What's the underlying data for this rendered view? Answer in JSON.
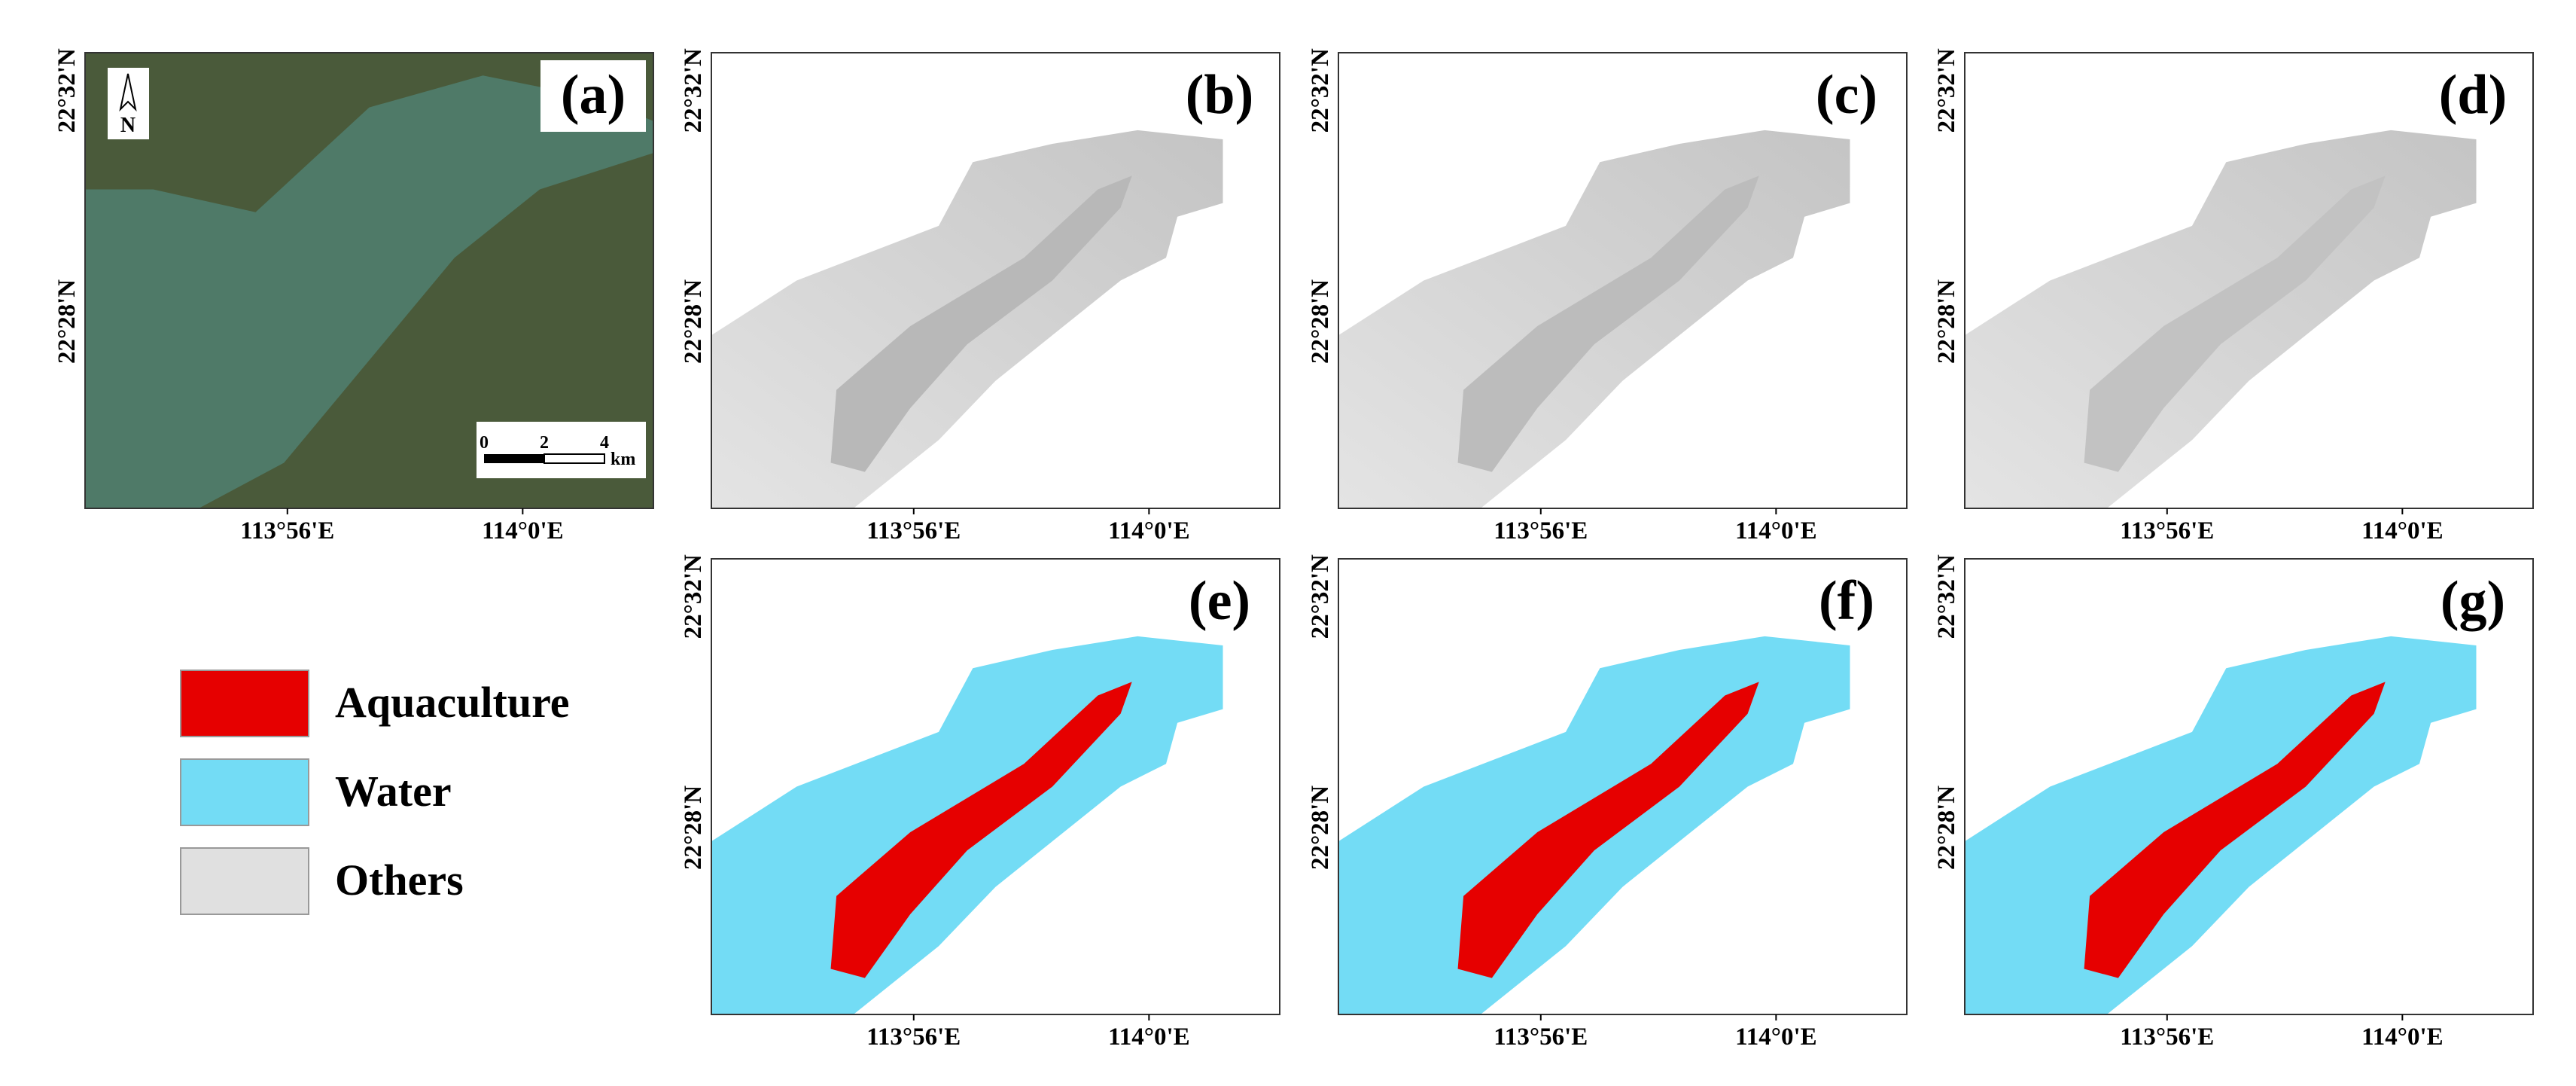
{
  "panels": [
    {
      "label": "(a)"
    },
    {
      "label": "(b)"
    },
    {
      "label": "(c)"
    },
    {
      "label": "(d)"
    },
    {
      "label": "(e)"
    },
    {
      "label": "(f)"
    },
    {
      "label": "(g)"
    }
  ],
  "x_ticks": [
    "113°56'E",
    "114°0'E"
  ],
  "y_ticks": [
    "22°32'N",
    "22°28'N"
  ],
  "north": "N",
  "scale_bar": {
    "labels": [
      "0",
      "2",
      "4"
    ],
    "unit": "km"
  },
  "legend": [
    {
      "label": "Aquaculture",
      "color": "#e60000"
    },
    {
      "label": "Water",
      "color": "#73dcf5"
    },
    {
      "label": "Others",
      "color": "#e0e0e0"
    }
  ]
}
